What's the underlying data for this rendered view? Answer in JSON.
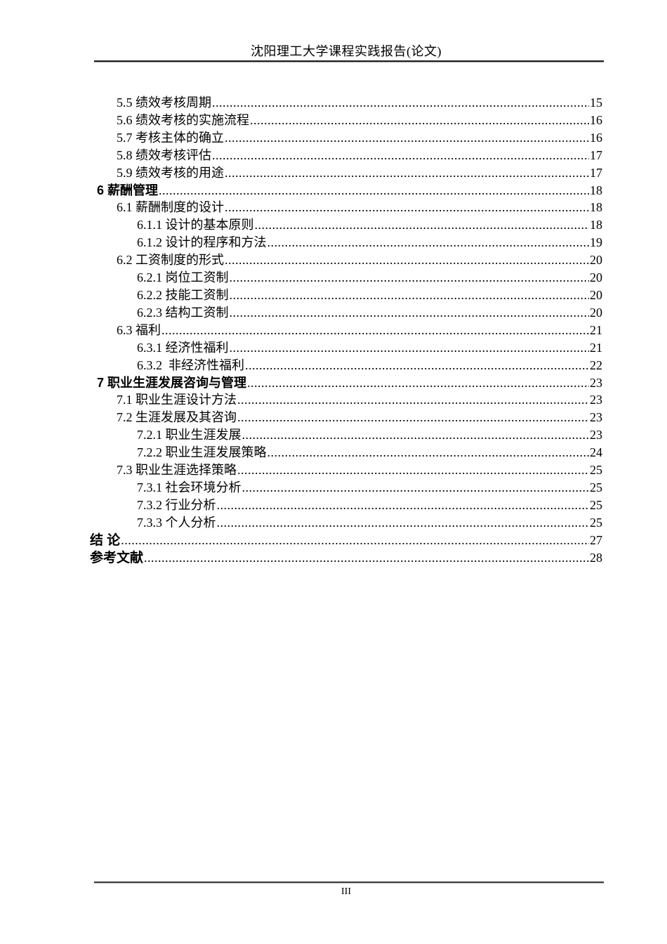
{
  "page": {
    "header_title": "沈阳理工大学课程实践报告(论文)",
    "footer_page_number": "III"
  },
  "toc": {
    "entries": [
      {
        "level": 2,
        "title": "5.5 绩效考核周期",
        "page": "15"
      },
      {
        "level": 2,
        "title": "5.6 绩效考核的实施流程",
        "page": "16"
      },
      {
        "level": 2,
        "title": "5.7 考核主体的确立",
        "page": "16"
      },
      {
        "level": 2,
        "title": "5.8 绩效考核评估",
        "page": "17"
      },
      {
        "level": 2,
        "title": "5.9 绩效考核的用途",
        "page": "17"
      },
      {
        "level": 1,
        "title": "6 薪酬管理",
        "page": "18"
      },
      {
        "level": 2,
        "title": "6.1 薪酬制度的设计",
        "page": "18"
      },
      {
        "level": 3,
        "title": "6.1.1 设计的基本原则",
        "page": "18"
      },
      {
        "level": 3,
        "title": "6.1.2 设计的程序和方法",
        "page": "19"
      },
      {
        "level": 2,
        "title": "6.2 工资制度的形式",
        "page": "20"
      },
      {
        "level": 3,
        "title": "6.2.1 岗位工资制",
        "page": "20"
      },
      {
        "level": 3,
        "title": "6.2.2 技能工资制",
        "page": "20"
      },
      {
        "level": 3,
        "title": "6.2.3 结构工资制",
        "page": "20"
      },
      {
        "level": 2,
        "title": "6.3 福利",
        "page": "21"
      },
      {
        "level": 3,
        "title": "6.3.1 经济性福利",
        "page": "21"
      },
      {
        "level": 3,
        "title": "6.3.2  非经济性福利",
        "page": "22"
      },
      {
        "level": 1,
        "title": "7 职业生涯发展咨询与管理",
        "page": "23"
      },
      {
        "level": 2,
        "title": "7.1 职业生涯设计方法",
        "page": "23"
      },
      {
        "level": 2,
        "title": "7.2 生涯发展及其咨询",
        "page": "23"
      },
      {
        "level": 3,
        "title": "7.2.1 职业生涯发展",
        "page": "23"
      },
      {
        "level": 3,
        "title": "7.2.2 职业生涯发展策略",
        "page": "24"
      },
      {
        "level": 2,
        "title": "7.3 职业生涯选择策略",
        "page": "25"
      },
      {
        "level": 3,
        "title": "7.3.1 社会环境分析",
        "page": "25"
      },
      {
        "level": 3,
        "title": "7.3.2 行业分析",
        "page": "25"
      },
      {
        "level": 3,
        "title": "7.3.3 个人分析",
        "page": "25"
      },
      {
        "level": 0,
        "title": "结 论",
        "page": "27"
      },
      {
        "level": 0,
        "title": "参考文献",
        "page": "28"
      }
    ]
  }
}
